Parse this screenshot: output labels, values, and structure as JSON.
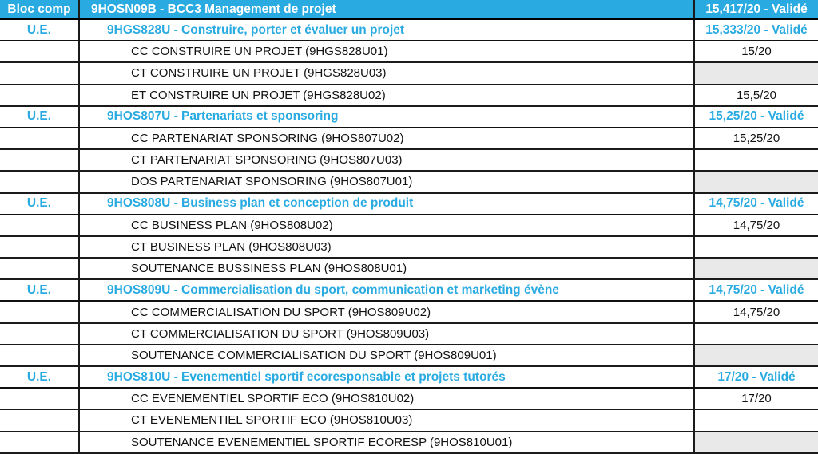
{
  "table": {
    "colors": {
      "accent_blue": "#29ABE2",
      "empty_cell_gray": "#E9E9E9",
      "border": "#1B1B1B",
      "header_text": "#FFFFFF",
      "detail_text": "#111111"
    },
    "header": {
      "col1": "Bloc comp",
      "col2": "9HOSN09B - BCC3 Management de projet",
      "col3": "15,417/20 - Validé"
    },
    "rows": [
      {
        "type": "ue",
        "label": "U.E.",
        "title": "9HGS828U - Construire, porter et évaluer un projet",
        "grade": "15,333/20 - Validé",
        "grade_bg": "white"
      },
      {
        "type": "detail",
        "label": "",
        "title": "CC CONSTRUIRE UN PROJET (9HGS828U01)",
        "grade": "15/20",
        "grade_bg": "white"
      },
      {
        "type": "detail",
        "label": "",
        "title": "CT CONSTRUIRE UN PROJET (9HGS828U03)",
        "grade": "",
        "grade_bg": "gray"
      },
      {
        "type": "detail",
        "label": "",
        "title": "ET CONSTRUIRE UN PROJET (9HGS828U02)",
        "grade": "15,5/20",
        "grade_bg": "white"
      },
      {
        "type": "ue",
        "label": "U.E.",
        "title": "9HOS807U - Partenariats et sponsoring",
        "grade": "15,25/20 - Validé",
        "grade_bg": "white"
      },
      {
        "type": "detail",
        "label": "",
        "title": "CC PARTENARIAT SPONSORING (9HOS807U02)",
        "grade": "15,25/20",
        "grade_bg": "white"
      },
      {
        "type": "detail",
        "label": "",
        "title": "CT PARTENARIAT SPONSORING (9HOS807U03)",
        "grade": "",
        "grade_bg": "white"
      },
      {
        "type": "detail",
        "label": "",
        "title": "DOS PARTENARIAT SPONSORING (9HOS807U01)",
        "grade": "",
        "grade_bg": "gray"
      },
      {
        "type": "ue",
        "label": "U.E.",
        "title": "9HOS808U - Business plan et conception de produit",
        "grade": "14,75/20 - Validé",
        "grade_bg": "white"
      },
      {
        "type": "detail",
        "label": "",
        "title": "CC BUSINESS PLAN (9HOS808U02)",
        "grade": "14,75/20",
        "grade_bg": "white"
      },
      {
        "type": "detail",
        "label": "",
        "title": "CT BUSINESS PLAN (9HOS808U03)",
        "grade": "",
        "grade_bg": "white"
      },
      {
        "type": "detail",
        "label": "",
        "title": "SOUTENANCE BUSSINESS PLAN (9HOS808U01)",
        "grade": "",
        "grade_bg": "gray"
      },
      {
        "type": "ue",
        "label": "U.E.",
        "title": "9HOS809U - Commercialisation du sport, communication et marketing évène",
        "grade": "14,75/20 - Validé",
        "grade_bg": "white"
      },
      {
        "type": "detail",
        "label": "",
        "title": "CC COMMERCIALISATION DU SPORT (9HOS809U02)",
        "grade": "14,75/20",
        "grade_bg": "white"
      },
      {
        "type": "detail",
        "label": "",
        "title": "CT COMMERCIALISATION DU SPORT (9HOS809U03)",
        "grade": "",
        "grade_bg": "white"
      },
      {
        "type": "detail",
        "label": "",
        "title": "SOUTENANCE COMMERCIALISATION DU SPORT (9HOS809U01)",
        "grade": "",
        "grade_bg": "gray"
      },
      {
        "type": "ue",
        "label": "U.E.",
        "title": "9HOS810U - Evenementiel sportif ecoresponsable et projets tutorés",
        "grade": "17/20 - Validé",
        "grade_bg": "white"
      },
      {
        "type": "detail",
        "label": "",
        "title": "CC EVENEMENTIEL SPORTIF ECO (9HOS810U02)",
        "grade": "17/20",
        "grade_bg": "white"
      },
      {
        "type": "detail",
        "label": "",
        "title": "CT EVENEMENTIEL SPORTIF ECO (9HOS810U03)",
        "grade": "",
        "grade_bg": "white"
      },
      {
        "type": "detail",
        "label": "",
        "title": "SOUTENANCE EVENEMENTIEL SPORTIF ECORESP (9HOS810U01)",
        "grade": "",
        "grade_bg": "gray"
      }
    ]
  }
}
